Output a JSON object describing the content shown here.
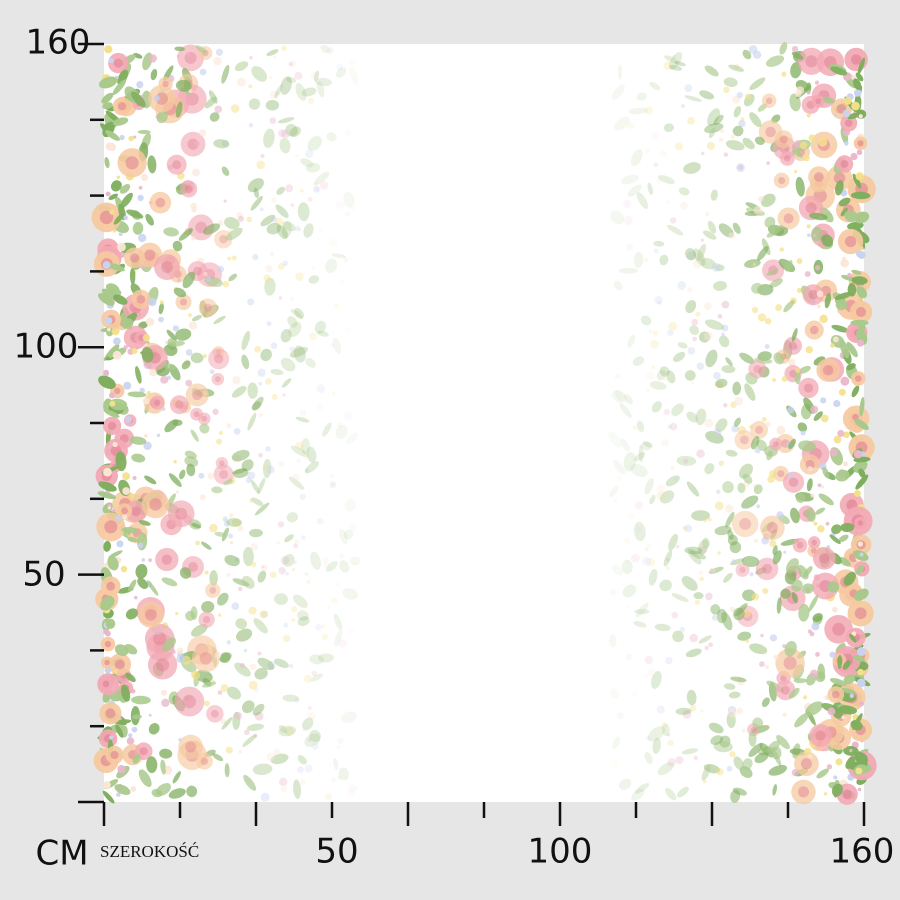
{
  "ruler": {
    "unit": "CM",
    "width_label": "SZEROKOŚĆ",
    "left_labels": [
      "160",
      "100",
      "50"
    ],
    "bottom_labels": [
      "50",
      "100",
      "160"
    ]
  }
}
